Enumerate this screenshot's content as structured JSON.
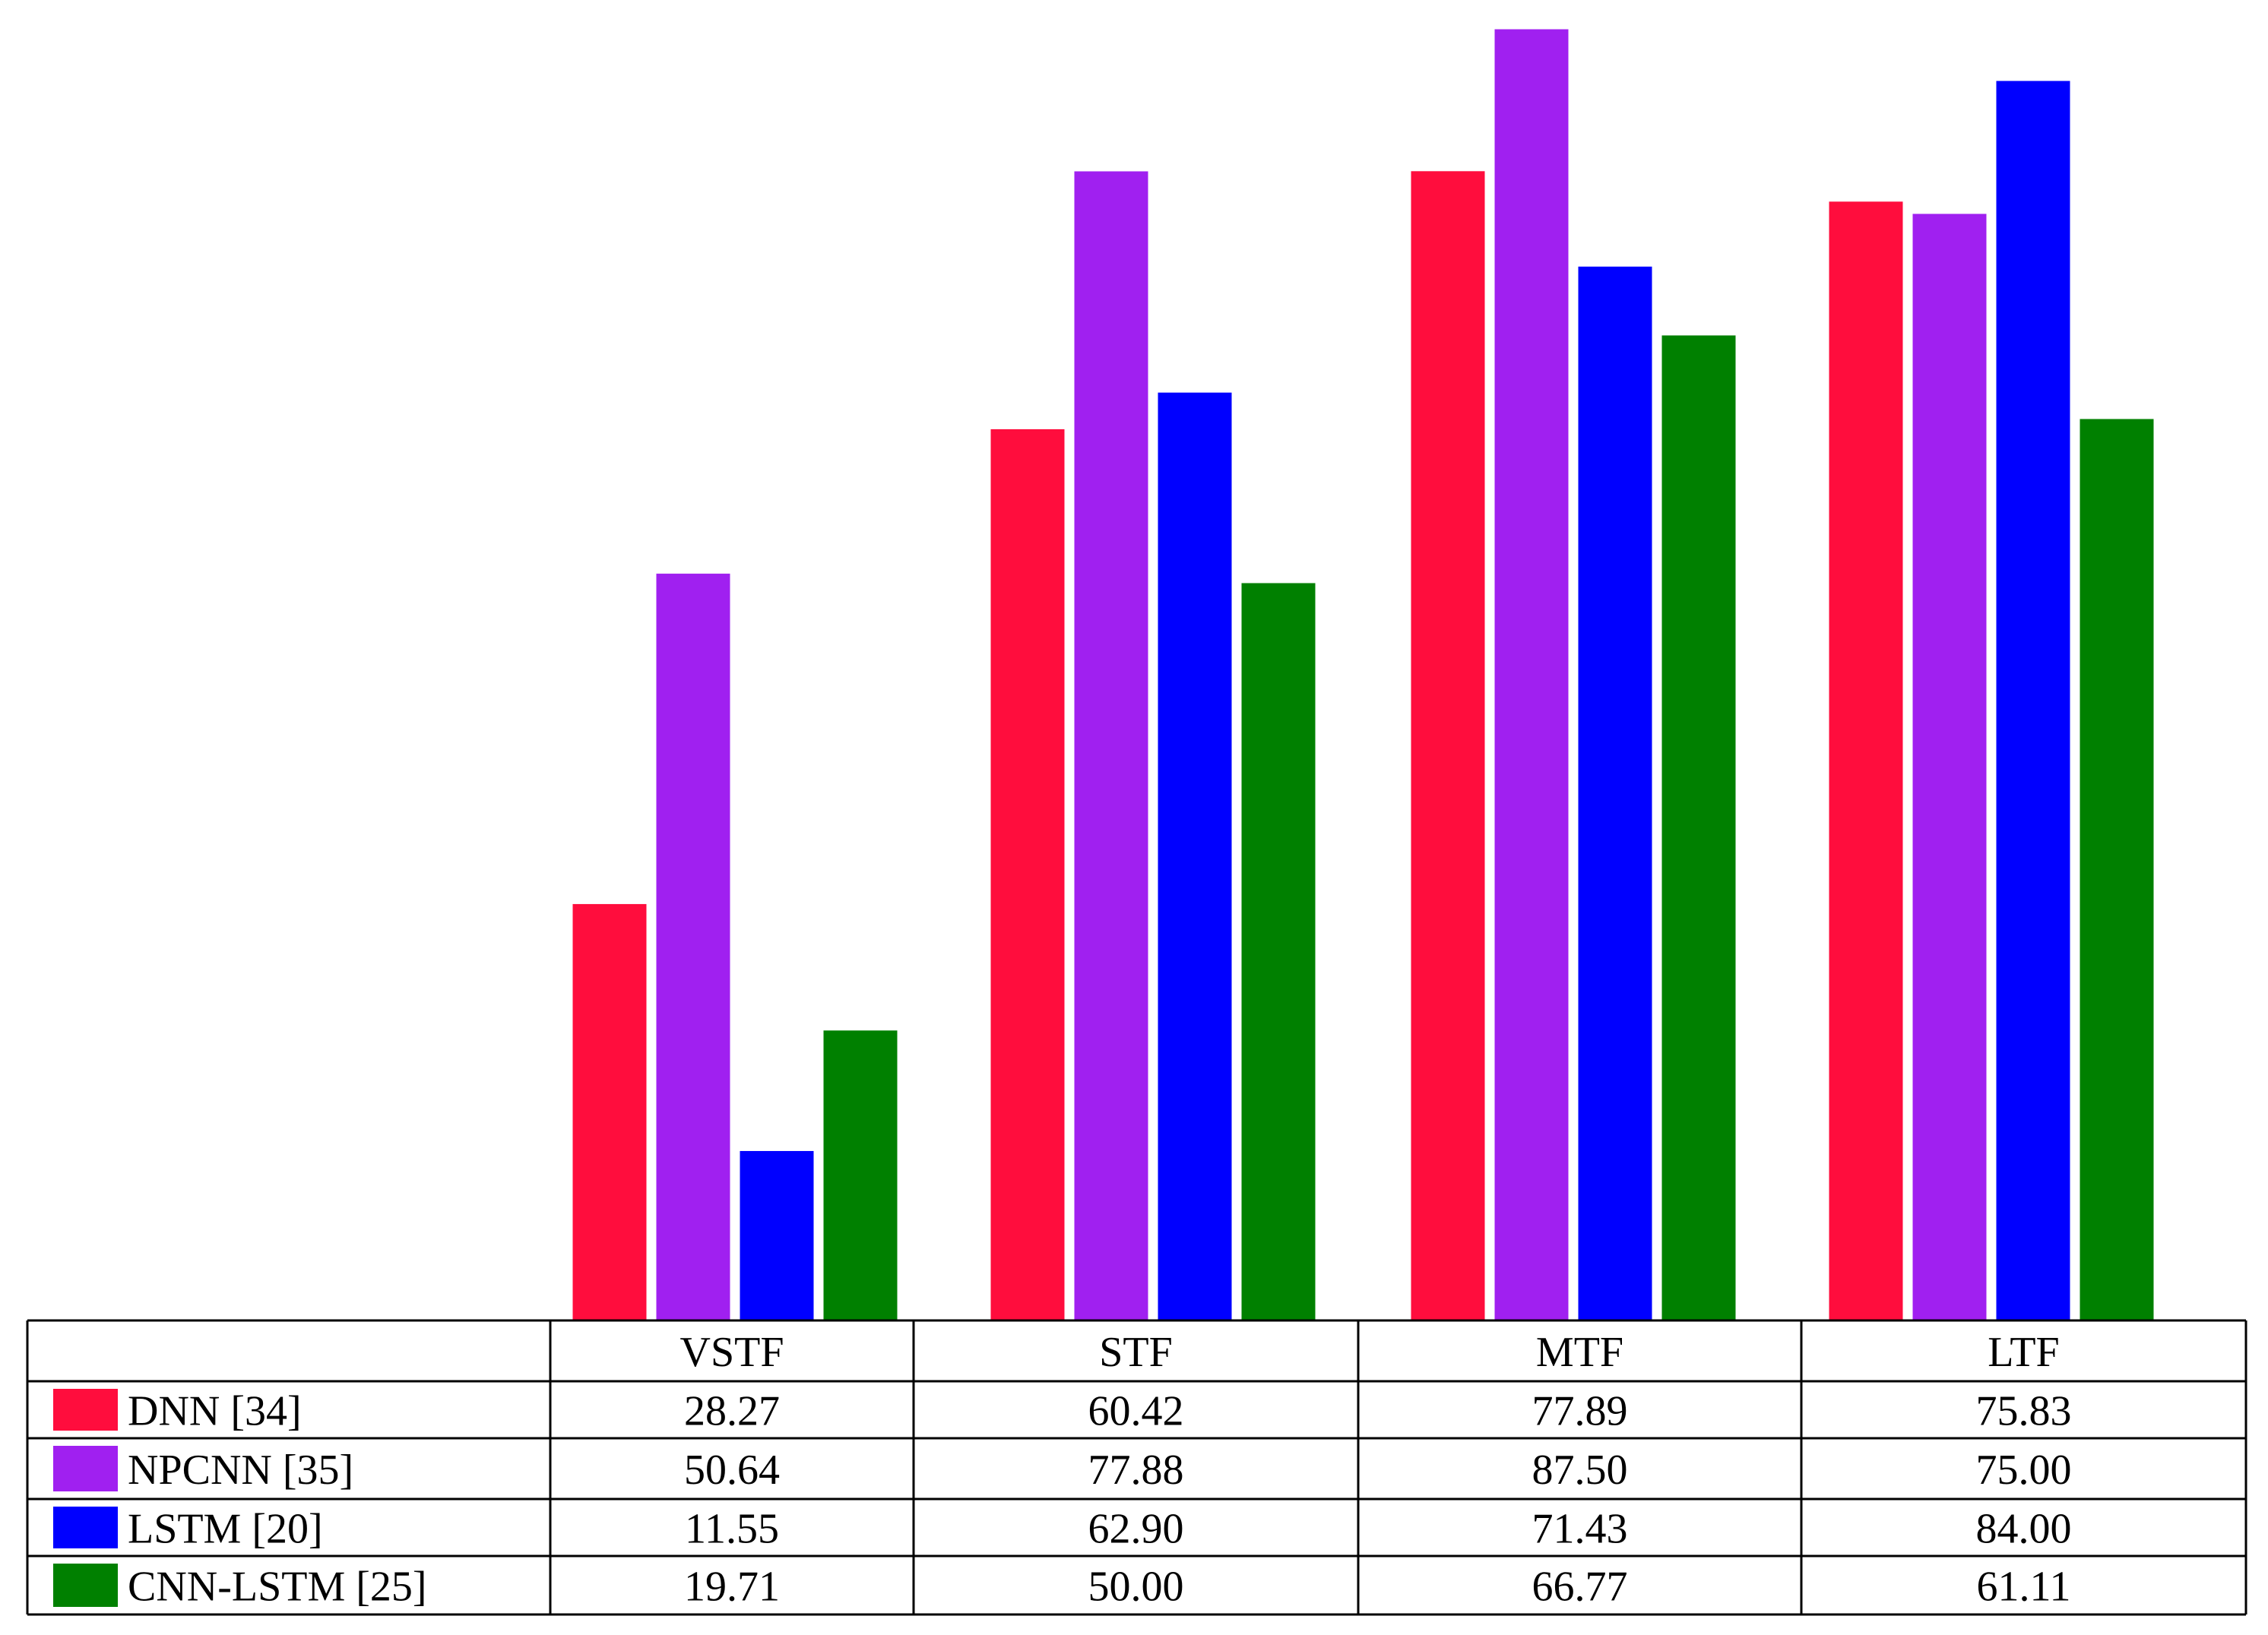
{
  "chart_data": {
    "type": "bar",
    "categories": [
      "VSTF",
      "STF",
      "MTF",
      "LTF"
    ],
    "series": [
      {
        "name": "DNN [34]",
        "color": "#ff0d3d",
        "values": [
          28.27,
          60.42,
          77.89,
          75.83
        ]
      },
      {
        "name": "NPCNN [35]",
        "color": "#a020f0",
        "values": [
          50.64,
          77.88,
          87.5,
          75.0
        ]
      },
      {
        "name": "LSTM [20]",
        "color": "#0000ff",
        "values": [
          11.55,
          62.9,
          71.43,
          84.0
        ]
      },
      {
        "name": "CNN-LSTM [25]",
        "color": "#008000",
        "values": [
          19.71,
          50.0,
          66.77,
          61.11
        ]
      }
    ],
    "value_labels": [
      [
        "28.27",
        "60.42",
        "77.89",
        "75.83"
      ],
      [
        "50.64",
        "77.88",
        "87.50",
        "75.00"
      ],
      [
        "11.55",
        "62.90",
        "71.43",
        "84.00"
      ],
      [
        "19.71",
        "50.00",
        "66.77",
        "61.11"
      ]
    ],
    "legend": "data-table",
    "grid": false,
    "ylim": [
      0,
      90
    ]
  }
}
